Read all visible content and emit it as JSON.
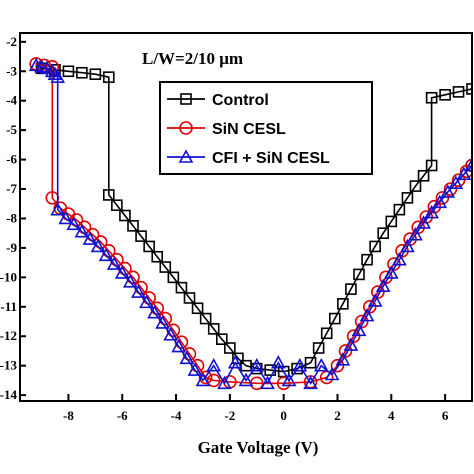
{
  "chart_data": {
    "type": "scatter",
    "xlabel": "Gate Voltage (V)",
    "ylabel": "",
    "annotation": "L/W=2/10 μm",
    "xlim": [
      -9.8,
      7
    ],
    "ylim": [
      -14.2,
      -1.7
    ],
    "yscale": "log10 exponent",
    "x_ticks": [
      -8,
      -6,
      -4,
      -2,
      0,
      2,
      4,
      6
    ],
    "x_tick_labels": [
      "-8",
      "-6",
      "-4",
      "-2",
      "0",
      "2",
      "4",
      "6"
    ],
    "y_ticks": [
      -2,
      -3,
      -4,
      -5,
      -6,
      -7,
      -8,
      -9,
      -10,
      -11,
      -12,
      -13,
      -14
    ],
    "y_tick_labels": [
      "-2",
      "-3",
      "-4",
      "-5",
      "-6",
      "-7",
      "-8",
      "-9",
      "-10",
      "-11",
      "-12",
      "-13",
      "-14"
    ],
    "legend_position": "upper-middle",
    "series": [
      {
        "name": "Control",
        "color": "#000000",
        "marker": "square",
        "points": [
          [
            -9.0,
            -2.9
          ],
          [
            -8.5,
            -2.95
          ],
          [
            -8.0,
            -3.0
          ],
          [
            -7.5,
            -3.05
          ],
          [
            -7.0,
            -3.1
          ],
          [
            -6.5,
            -3.2
          ],
          [
            -6.5,
            -7.2
          ],
          [
            -6.2,
            -7.55
          ],
          [
            -5.9,
            -7.9
          ],
          [
            -5.6,
            -8.25
          ],
          [
            -5.3,
            -8.6
          ],
          [
            -5.0,
            -8.95
          ],
          [
            -4.7,
            -9.3
          ],
          [
            -4.4,
            -9.65
          ],
          [
            -4.1,
            -10.0
          ],
          [
            -3.8,
            -10.35
          ],
          [
            -3.5,
            -10.7
          ],
          [
            -3.2,
            -11.05
          ],
          [
            -2.9,
            -11.4
          ],
          [
            -2.6,
            -11.75
          ],
          [
            -2.3,
            -12.1
          ],
          [
            -2.0,
            -12.4
          ],
          [
            -1.7,
            -12.75
          ],
          [
            -1.4,
            -13.0
          ],
          [
            -1.0,
            -13.1
          ],
          [
            -0.5,
            -13.15
          ],
          [
            0.0,
            -13.2
          ],
          [
            0.5,
            -13.1
          ],
          [
            1.0,
            -12.9
          ],
          [
            1.3,
            -12.4
          ],
          [
            1.6,
            -11.9
          ],
          [
            1.9,
            -11.4
          ],
          [
            2.2,
            -10.9
          ],
          [
            2.5,
            -10.4
          ],
          [
            2.8,
            -9.9
          ],
          [
            3.1,
            -9.4
          ],
          [
            3.4,
            -8.95
          ],
          [
            3.7,
            -8.5
          ],
          [
            4.0,
            -8.1
          ],
          [
            4.3,
            -7.7
          ],
          [
            4.6,
            -7.3
          ],
          [
            4.9,
            -6.9
          ],
          [
            5.2,
            -6.55
          ],
          [
            5.5,
            -6.2
          ],
          [
            5.5,
            -3.9
          ],
          [
            6.0,
            -3.8
          ],
          [
            6.5,
            -3.7
          ],
          [
            7.0,
            -3.6
          ]
        ]
      },
      {
        "name": "SiN CESL",
        "color": "#e00000",
        "marker": "circle",
        "points": [
          [
            -9.2,
            -2.75
          ],
          [
            -8.9,
            -2.8
          ],
          [
            -8.6,
            -2.85
          ],
          [
            -8.6,
            -7.3
          ],
          [
            -8.3,
            -7.65
          ],
          [
            -8.0,
            -7.85
          ],
          [
            -7.7,
            -8.05
          ],
          [
            -7.4,
            -8.3
          ],
          [
            -7.1,
            -8.55
          ],
          [
            -6.8,
            -8.8
          ],
          [
            -6.5,
            -9.1
          ],
          [
            -6.2,
            -9.4
          ],
          [
            -5.9,
            -9.7
          ],
          [
            -5.6,
            -10.0
          ],
          [
            -5.3,
            -10.35
          ],
          [
            -5.0,
            -10.7
          ],
          [
            -4.7,
            -11.05
          ],
          [
            -4.4,
            -11.4
          ],
          [
            -4.1,
            -11.8
          ],
          [
            -3.8,
            -12.2
          ],
          [
            -3.5,
            -12.6
          ],
          [
            -3.2,
            -13.0
          ],
          [
            -2.9,
            -13.4
          ],
          [
            -2.6,
            -13.5
          ],
          [
            -2.0,
            -13.55
          ],
          [
            -1.0,
            -13.6
          ],
          [
            0.0,
            -13.6
          ],
          [
            1.0,
            -13.55
          ],
          [
            1.6,
            -13.4
          ],
          [
            2.0,
            -13.0
          ],
          [
            2.3,
            -12.5
          ],
          [
            2.6,
            -12.0
          ],
          [
            2.9,
            -11.5
          ],
          [
            3.2,
            -11.0
          ],
          [
            3.5,
            -10.5
          ],
          [
            3.8,
            -10.0
          ],
          [
            4.1,
            -9.55
          ],
          [
            4.4,
            -9.1
          ],
          [
            4.7,
            -8.7
          ],
          [
            5.0,
            -8.3
          ],
          [
            5.3,
            -7.95
          ],
          [
            5.6,
            -7.6
          ],
          [
            5.9,
            -7.3
          ],
          [
            6.2,
            -7.0
          ],
          [
            6.5,
            -6.7
          ],
          [
            6.8,
            -6.4
          ],
          [
            7.0,
            -6.2
          ]
        ]
      },
      {
        "name": "CFI + SiN CESL",
        "color": "#1010d0",
        "marker": "triangle",
        "points": [
          [
            -9.2,
            -2.8
          ],
          [
            -9.0,
            -2.85
          ],
          [
            -8.8,
            -2.9
          ],
          [
            -8.6,
            -3.0
          ],
          [
            -8.5,
            -3.1
          ],
          [
            -8.4,
            -3.2
          ],
          [
            -8.4,
            -7.7
          ],
          [
            -8.1,
            -8.0
          ],
          [
            -7.8,
            -8.2
          ],
          [
            -7.5,
            -8.45
          ],
          [
            -7.2,
            -8.7
          ],
          [
            -6.9,
            -8.95
          ],
          [
            -6.6,
            -9.25
          ],
          [
            -6.3,
            -9.55
          ],
          [
            -6.0,
            -9.85
          ],
          [
            -5.7,
            -10.15
          ],
          [
            -5.4,
            -10.5
          ],
          [
            -5.1,
            -10.85
          ],
          [
            -4.8,
            -11.2
          ],
          [
            -4.5,
            -11.55
          ],
          [
            -4.2,
            -11.95
          ],
          [
            -3.9,
            -12.35
          ],
          [
            -3.6,
            -12.75
          ],
          [
            -3.3,
            -13.15
          ],
          [
            -3.0,
            -13.5
          ],
          [
            -2.6,
            -13.0
          ],
          [
            -2.2,
            -13.6
          ],
          [
            -1.8,
            -12.9
          ],
          [
            -1.4,
            -13.5
          ],
          [
            -1.0,
            -13.0
          ],
          [
            -0.6,
            -13.6
          ],
          [
            -0.2,
            -12.9
          ],
          [
            0.2,
            -13.5
          ],
          [
            0.6,
            -13.0
          ],
          [
            1.0,
            -13.6
          ],
          [
            1.4,
            -13.0
          ],
          [
            1.8,
            -13.3
          ],
          [
            2.2,
            -12.8
          ],
          [
            2.5,
            -12.3
          ],
          [
            2.8,
            -11.8
          ],
          [
            3.1,
            -11.3
          ],
          [
            3.4,
            -10.8
          ],
          [
            3.7,
            -10.3
          ],
          [
            4.0,
            -9.85
          ],
          [
            4.3,
            -9.4
          ],
          [
            4.6,
            -8.95
          ],
          [
            4.9,
            -8.55
          ],
          [
            5.2,
            -8.15
          ],
          [
            5.5,
            -7.8
          ],
          [
            5.8,
            -7.45
          ],
          [
            6.1,
            -7.1
          ],
          [
            6.4,
            -6.8
          ],
          [
            6.7,
            -6.5
          ],
          [
            7.0,
            -6.2
          ]
        ]
      }
    ]
  }
}
